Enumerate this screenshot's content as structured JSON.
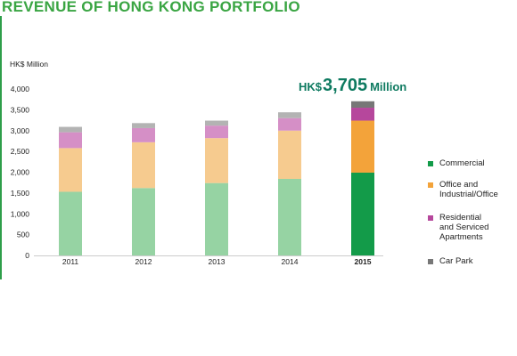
{
  "title": "REVENUE OF HONG KONG PORTFOLIO",
  "total_callout": {
    "prefix": "HK$",
    "value": "3,705",
    "suffix": "Million"
  },
  "chart_data": {
    "type": "bar",
    "stacked": true,
    "title": "REVENUE OF HONG KONG PORTFOLIO",
    "ylabel": "HK$ Million",
    "xlabel": "",
    "ylim": [
      0,
      4000
    ],
    "yticks": [
      "4,000",
      "3,500",
      "3,000",
      "2,500",
      "2,000",
      "1,500",
      "1,000",
      "500",
      "0"
    ],
    "ytick_values": [
      4000,
      3500,
      3000,
      2500,
      2000,
      1500,
      1000,
      500,
      0
    ],
    "categories": [
      "2011",
      "2012",
      "2013",
      "2014",
      "2015"
    ],
    "highlight_category": "2015",
    "series": [
      {
        "name": "Commercial",
        "values": [
          1530,
          1620,
          1740,
          1840,
          1990
        ],
        "color": "#96d3a3",
        "highlight_color": "#139b49"
      },
      {
        "name": "Office and Industrial/Office",
        "values": [
          1050,
          1100,
          1080,
          1160,
          1250
        ],
        "color": "#f6cb8f",
        "highlight_color": "#f3a33a"
      },
      {
        "name": "Residential and Serviced Apartments",
        "values": [
          380,
          340,
          300,
          300,
          310
        ],
        "color": "#d58fc6",
        "highlight_color": "#b6479c"
      },
      {
        "name": "Car Park",
        "values": [
          130,
          120,
          120,
          140,
          155
        ],
        "color": "#b3b3b3",
        "highlight_color": "#777777"
      }
    ],
    "legend_position": "right",
    "grid": false
  },
  "legend": {
    "items": [
      {
        "label_lines": [
          "Commercial"
        ],
        "color": "#139b49"
      },
      {
        "label_lines": [
          "Office and",
          "Industrial/Office"
        ],
        "color": "#f3a33a"
      },
      {
        "label_lines": [
          "Residential",
          "and Serviced",
          "Apartments"
        ],
        "color": "#b6479c"
      },
      {
        "label_lines": [
          "Car Park"
        ],
        "color": "#777777"
      }
    ]
  }
}
